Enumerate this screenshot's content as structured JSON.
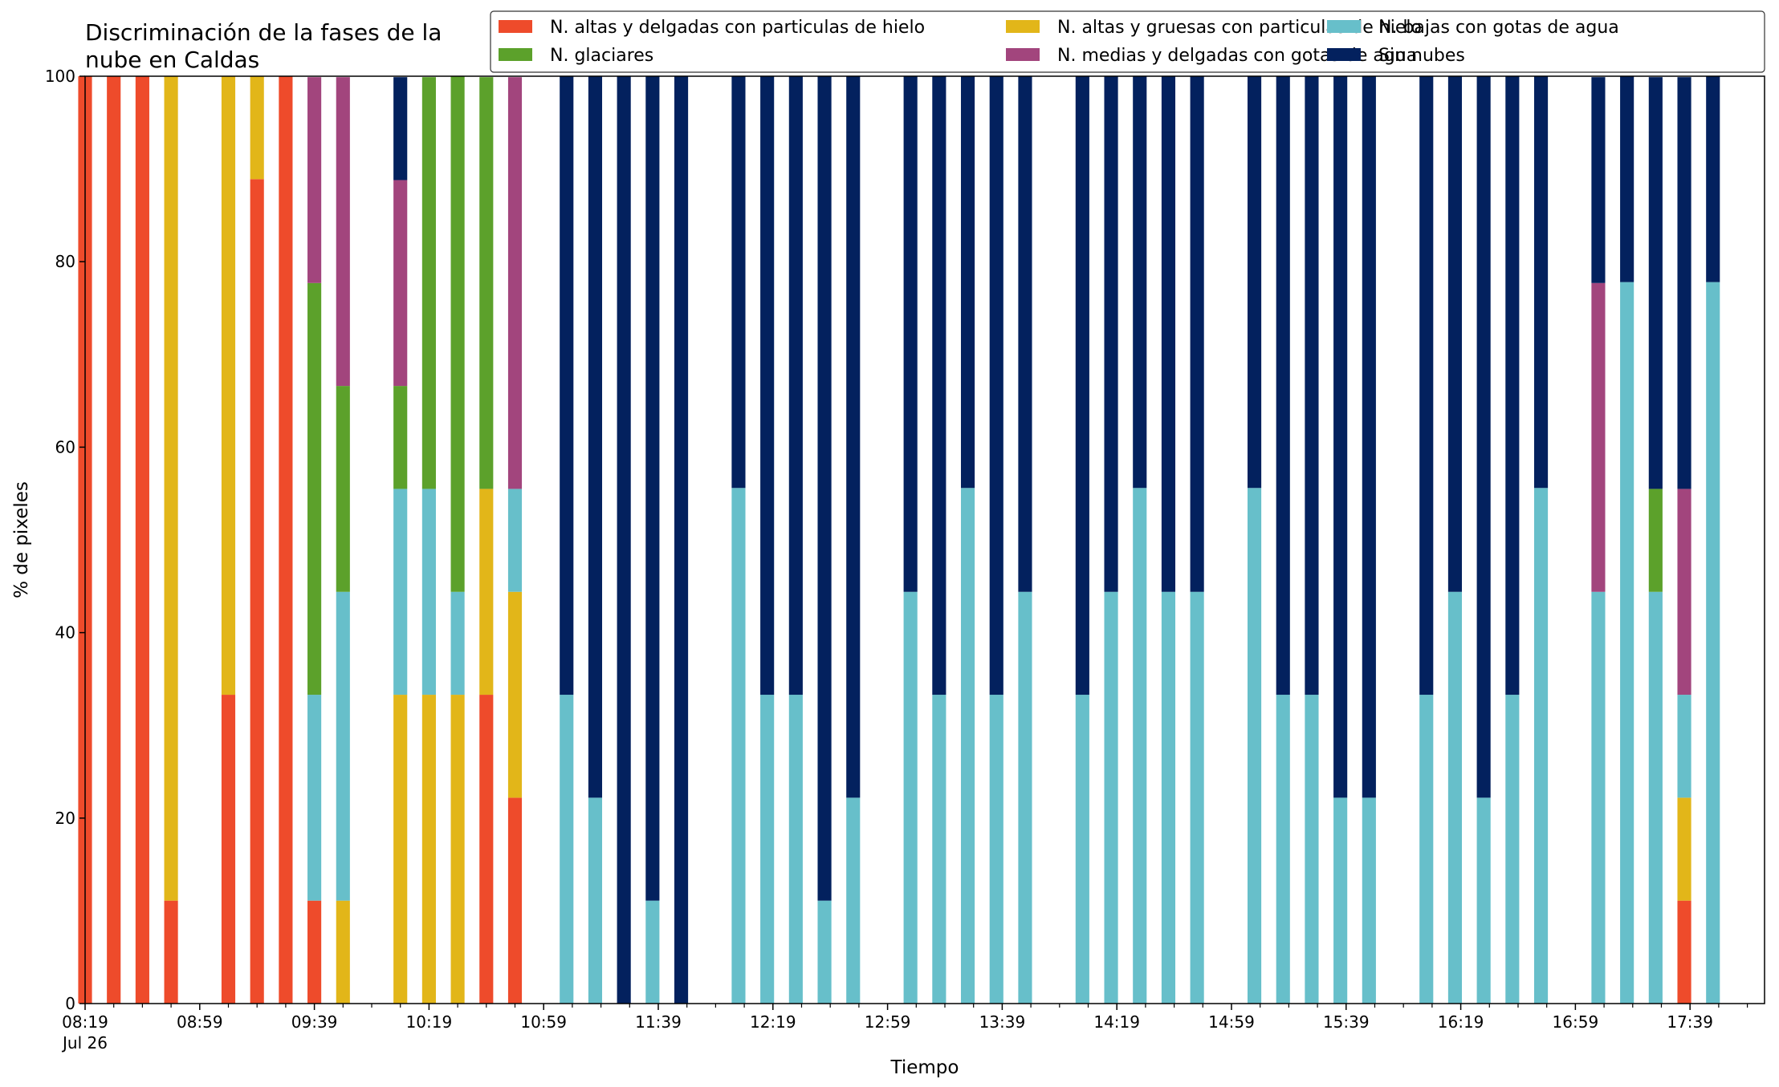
{
  "chart_data": {
    "type": "bar",
    "stacked": true,
    "title_lines": [
      "Discriminación de la fases de la",
      "nube en Caldas"
    ],
    "xlabel": "Tiempo",
    "ylabel": "% de pixeles",
    "ylim": [
      0,
      100
    ],
    "yticks": [
      0,
      20,
      40,
      60,
      80,
      100
    ],
    "xtick_labels": [
      "08:19",
      "08:59",
      "09:39",
      "10:19",
      "10:59",
      "11:39",
      "12:19",
      "12:59",
      "13:39",
      "14:19",
      "14:59",
      "15:39",
      "16:19",
      "16:59",
      "17:39"
    ],
    "xtick_sublabel": "Jul 26",
    "x_range_minutes": [
      "08:19",
      "18:05"
    ],
    "bar_width_minutes": 4.8,
    "legend_position": "top-right",
    "grid": false,
    "times": [
      "08:19",
      "08:29",
      "08:39",
      "08:49",
      "09:09",
      "09:19",
      "09:29",
      "09:39",
      "09:49",
      "10:09",
      "10:19",
      "10:29",
      "10:39",
      "10:49",
      "11:07",
      "11:17",
      "11:27",
      "11:37",
      "11:47",
      "12:07",
      "12:17",
      "12:27",
      "12:37",
      "12:47",
      "13:07",
      "13:17",
      "13:27",
      "13:37",
      "13:47",
      "14:07",
      "14:17",
      "14:27",
      "14:37",
      "14:47",
      "15:07",
      "15:17",
      "15:27",
      "15:37",
      "15:47",
      "16:07",
      "16:17",
      "16:27",
      "16:37",
      "16:47",
      "17:07",
      "17:17",
      "17:27",
      "17:37",
      "17:47"
    ],
    "series": [
      {
        "name": "N. altas y delgadas con particulas de hielo",
        "color": "#ee4b2b",
        "values": [
          100,
          100,
          100,
          11.1,
          33.3,
          88.9,
          100,
          11.1,
          0,
          0,
          0,
          0,
          33.3,
          22.2,
          0,
          0,
          0,
          0,
          0,
          0,
          0,
          0,
          0,
          0,
          0,
          0,
          0,
          0,
          0,
          0,
          0,
          0,
          0,
          0,
          0,
          0,
          0,
          0,
          0,
          0,
          0,
          0,
          0,
          0,
          0,
          0,
          0,
          11.1,
          0
        ]
      },
      {
        "name": "N. altas y gruesas con particulas de hielo",
        "color": "#e2b619",
        "values": [
          0,
          0,
          0,
          88.9,
          66.7,
          11.1,
          0,
          0,
          11.1,
          33.3,
          33.3,
          33.3,
          22.2,
          22.2,
          0,
          0,
          0,
          0,
          0,
          0,
          0,
          0,
          0,
          0,
          0,
          0,
          0,
          0,
          0,
          0,
          0,
          0,
          0,
          0,
          0,
          0,
          0,
          0,
          0,
          0,
          0,
          0,
          0,
          0,
          0,
          0,
          0,
          11.1,
          0
        ]
      },
      {
        "name": "N. bajas con gotas de agua",
        "color": "#67bfca",
        "values": [
          0,
          0,
          0,
          0,
          0,
          0,
          0,
          22.2,
          33.3,
          22.2,
          22.2,
          11.1,
          0,
          11.1,
          33.3,
          22.2,
          0,
          11.1,
          0,
          55.6,
          33.3,
          33.3,
          11.1,
          22.2,
          44.4,
          33.3,
          55.6,
          33.3,
          44.4,
          33.3,
          44.4,
          55.6,
          44.4,
          44.4,
          55.6,
          33.3,
          33.3,
          22.2,
          22.2,
          33.3,
          44.4,
          22.2,
          33.3,
          55.6,
          44.4,
          77.8,
          44.4,
          11.1,
          77.8
        ]
      },
      {
        "name": "N. glaciares",
        "color": "#5ca12b",
        "values": [
          0,
          0,
          0,
          0,
          0,
          0,
          0,
          44.4,
          22.2,
          11.1,
          44.4,
          55.6,
          44.4,
          0,
          0,
          0,
          0,
          0,
          0,
          0,
          0,
          0,
          0,
          0,
          0,
          0,
          0,
          0,
          0,
          0,
          0,
          0,
          0,
          0,
          0,
          0,
          0,
          0,
          0,
          0,
          0,
          0,
          0,
          0,
          0,
          0,
          11.1,
          0,
          0
        ]
      },
      {
        "name": "N. medias y delgadas con gotas de agua",
        "color": "#a2457d",
        "values": [
          0,
          0,
          0,
          0,
          0,
          0,
          0,
          22.2,
          33.3,
          22.2,
          0,
          0,
          0,
          44.4,
          0,
          0,
          0,
          0,
          0,
          0,
          0,
          0,
          0,
          0,
          0,
          0,
          0,
          0,
          0,
          0,
          0,
          0,
          0,
          0,
          0,
          0,
          0,
          0,
          0,
          0,
          0,
          0,
          0,
          0,
          33.3,
          0,
          0,
          22.2,
          0
        ]
      },
      {
        "name": "Sin nubes",
        "color": "#03215e",
        "values": [
          0,
          0,
          0,
          0,
          0,
          0,
          0,
          0,
          0,
          11.1,
          0,
          0,
          0,
          0,
          66.7,
          77.8,
          100,
          88.9,
          100,
          44.4,
          66.7,
          66.7,
          88.9,
          77.8,
          55.6,
          66.7,
          44.4,
          66.7,
          55.6,
          66.7,
          55.6,
          44.4,
          55.6,
          55.6,
          44.4,
          66.7,
          66.7,
          77.8,
          77.8,
          66.7,
          55.6,
          77.8,
          66.7,
          44.4,
          22.2,
          22.2,
          44.4,
          44.4,
          22.2
        ]
      }
    ]
  }
}
